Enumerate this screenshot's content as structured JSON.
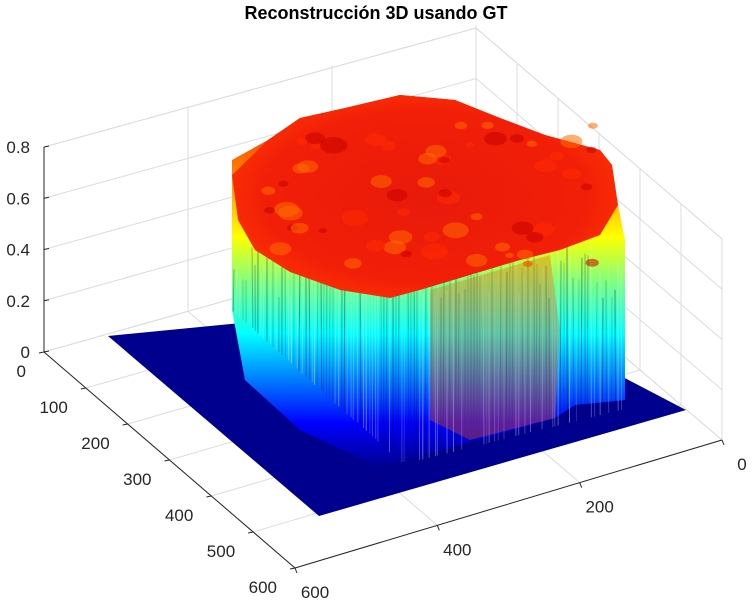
{
  "chart_data": {
    "type": "surface",
    "title": "Reconstrucción 3D usando GT",
    "xlabel": "",
    "ylabel": "",
    "zlabel": "",
    "x_ticks": [
      "0",
      "200",
      "400",
      "600"
    ],
    "y_ticks": [
      "0",
      "100",
      "200",
      "300",
      "400",
      "500",
      "600"
    ],
    "z_ticks": [
      "0",
      "0.2",
      "0.4",
      "0.6",
      "0.8"
    ],
    "xlim": [
      0,
      600
    ],
    "ylim": [
      0,
      600
    ],
    "zlim": [
      0,
      0.8
    ],
    "grid": true,
    "colormap": "jet",
    "description_values": {
      "base_level": 0,
      "plateau_level_max": 0.78,
      "object_x_range": [
        130,
        520
      ],
      "object_y_range": [
        110,
        500
      ]
    }
  },
  "colors": {
    "floor": "#00008f",
    "grid": "#dcdcdc",
    "axis": "#262626"
  }
}
